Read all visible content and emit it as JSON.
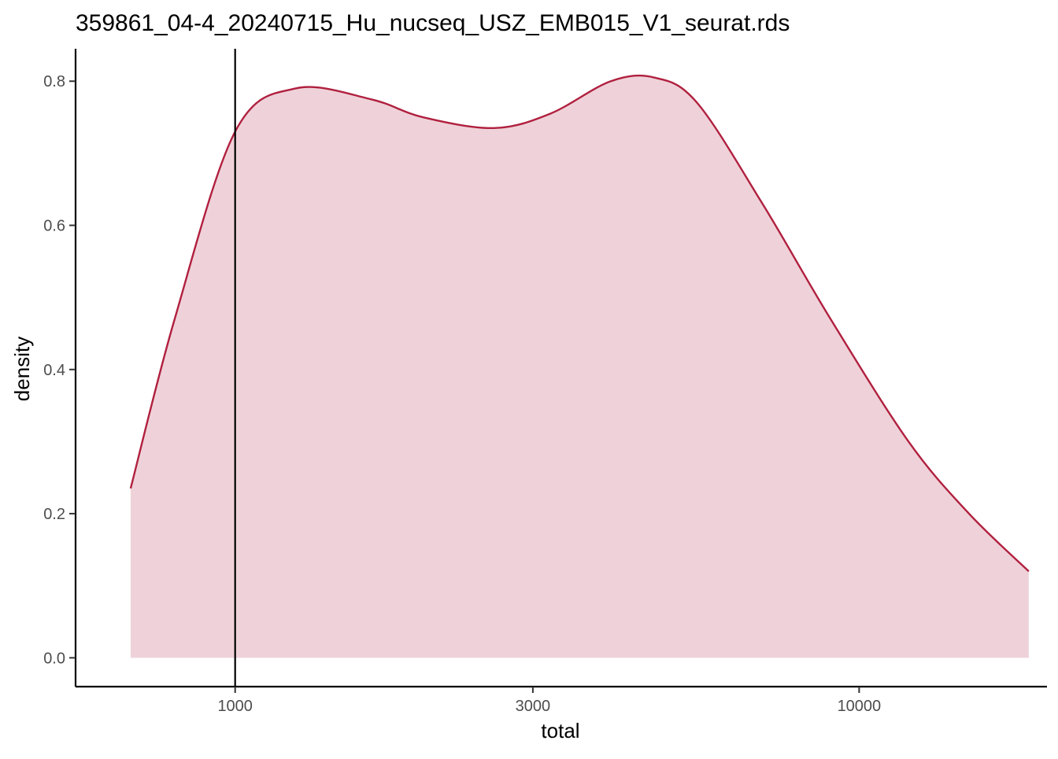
{
  "chart_data": {
    "type": "area",
    "title": "359861_04-4_20240715_Hu_nucseq_USZ_EMB015_V1_seurat.rds",
    "xlabel": "total",
    "ylabel": "density",
    "x_scale": "log10",
    "xlim": [
      555,
      20000
    ],
    "ylim": [
      -0.04,
      0.845
    ],
    "x_ticks": [
      1000,
      3000,
      10000
    ],
    "x_tick_labels": [
      "1000",
      "3000",
      "10000"
    ],
    "y_ticks": [
      0.0,
      0.2,
      0.4,
      0.6,
      0.8
    ],
    "y_tick_labels": [
      "0.0",
      "0.2",
      "0.4",
      "0.6",
      "0.8"
    ],
    "grid": false,
    "reference_line": {
      "x": 1000,
      "color": "#000000"
    },
    "series": [
      {
        "x": [
          680,
          800,
          1000,
          1250,
          1650,
          2000,
          2600,
          3200,
          4000,
          4700,
          5500,
          7000,
          9000,
          12000,
          15000,
          18700
        ],
        "y": [
          0.235,
          0.47,
          0.73,
          0.79,
          0.775,
          0.75,
          0.735,
          0.755,
          0.8,
          0.805,
          0.77,
          0.63,
          0.47,
          0.3,
          0.2,
          0.12
        ]
      }
    ],
    "colors": {
      "line": "#b0203f",
      "fill": "#efd2d9",
      "axis": "#000000"
    }
  }
}
